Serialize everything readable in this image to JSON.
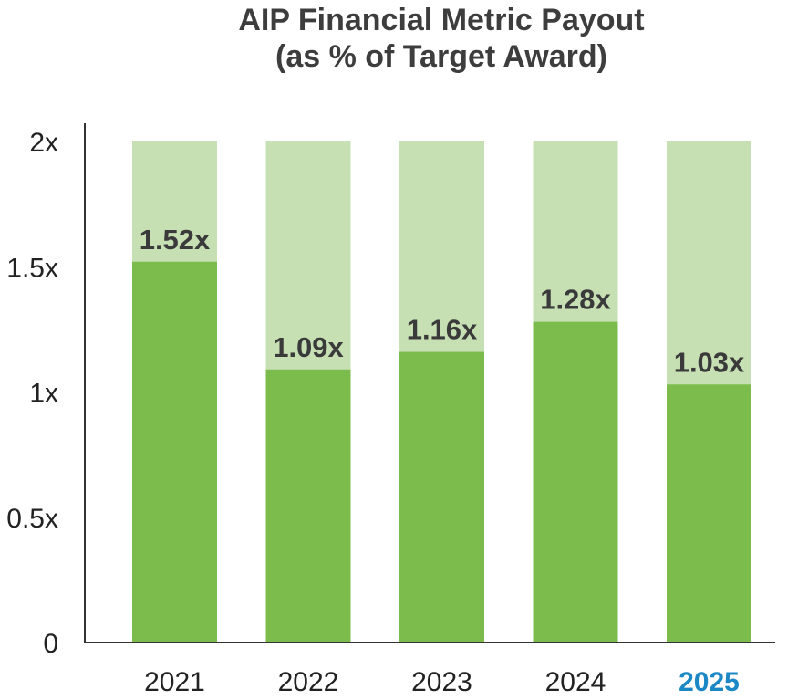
{
  "chart_data": {
    "type": "bar",
    "title_line1": "AIP Financial Metric Payout",
    "title_line2": "(as % of Target Award)",
    "categories": [
      "2021",
      "2022",
      "2023",
      "2024",
      "2025"
    ],
    "highlight_category": "2025",
    "values": [
      1.52,
      1.09,
      1.16,
      1.28,
      1.03
    ],
    "data_labels": [
      "1.52x",
      "1.09x",
      "1.16x",
      "1.28x",
      "1.03x"
    ],
    "max_value": 2,
    "ylim": [
      0,
      2
    ],
    "yticks": [
      0,
      0.5,
      1,
      1.5,
      2
    ],
    "ytick_labels": [
      "0",
      "0.5x",
      "1x",
      "1.5x",
      "2x"
    ],
    "xlabel": "",
    "ylabel": "",
    "grid": false,
    "colors": {
      "bar_fill": "#7bbc4c",
      "bar_background": "#c6e0b4",
      "highlight_text": "#1b87c5",
      "axis": "#333333"
    }
  }
}
